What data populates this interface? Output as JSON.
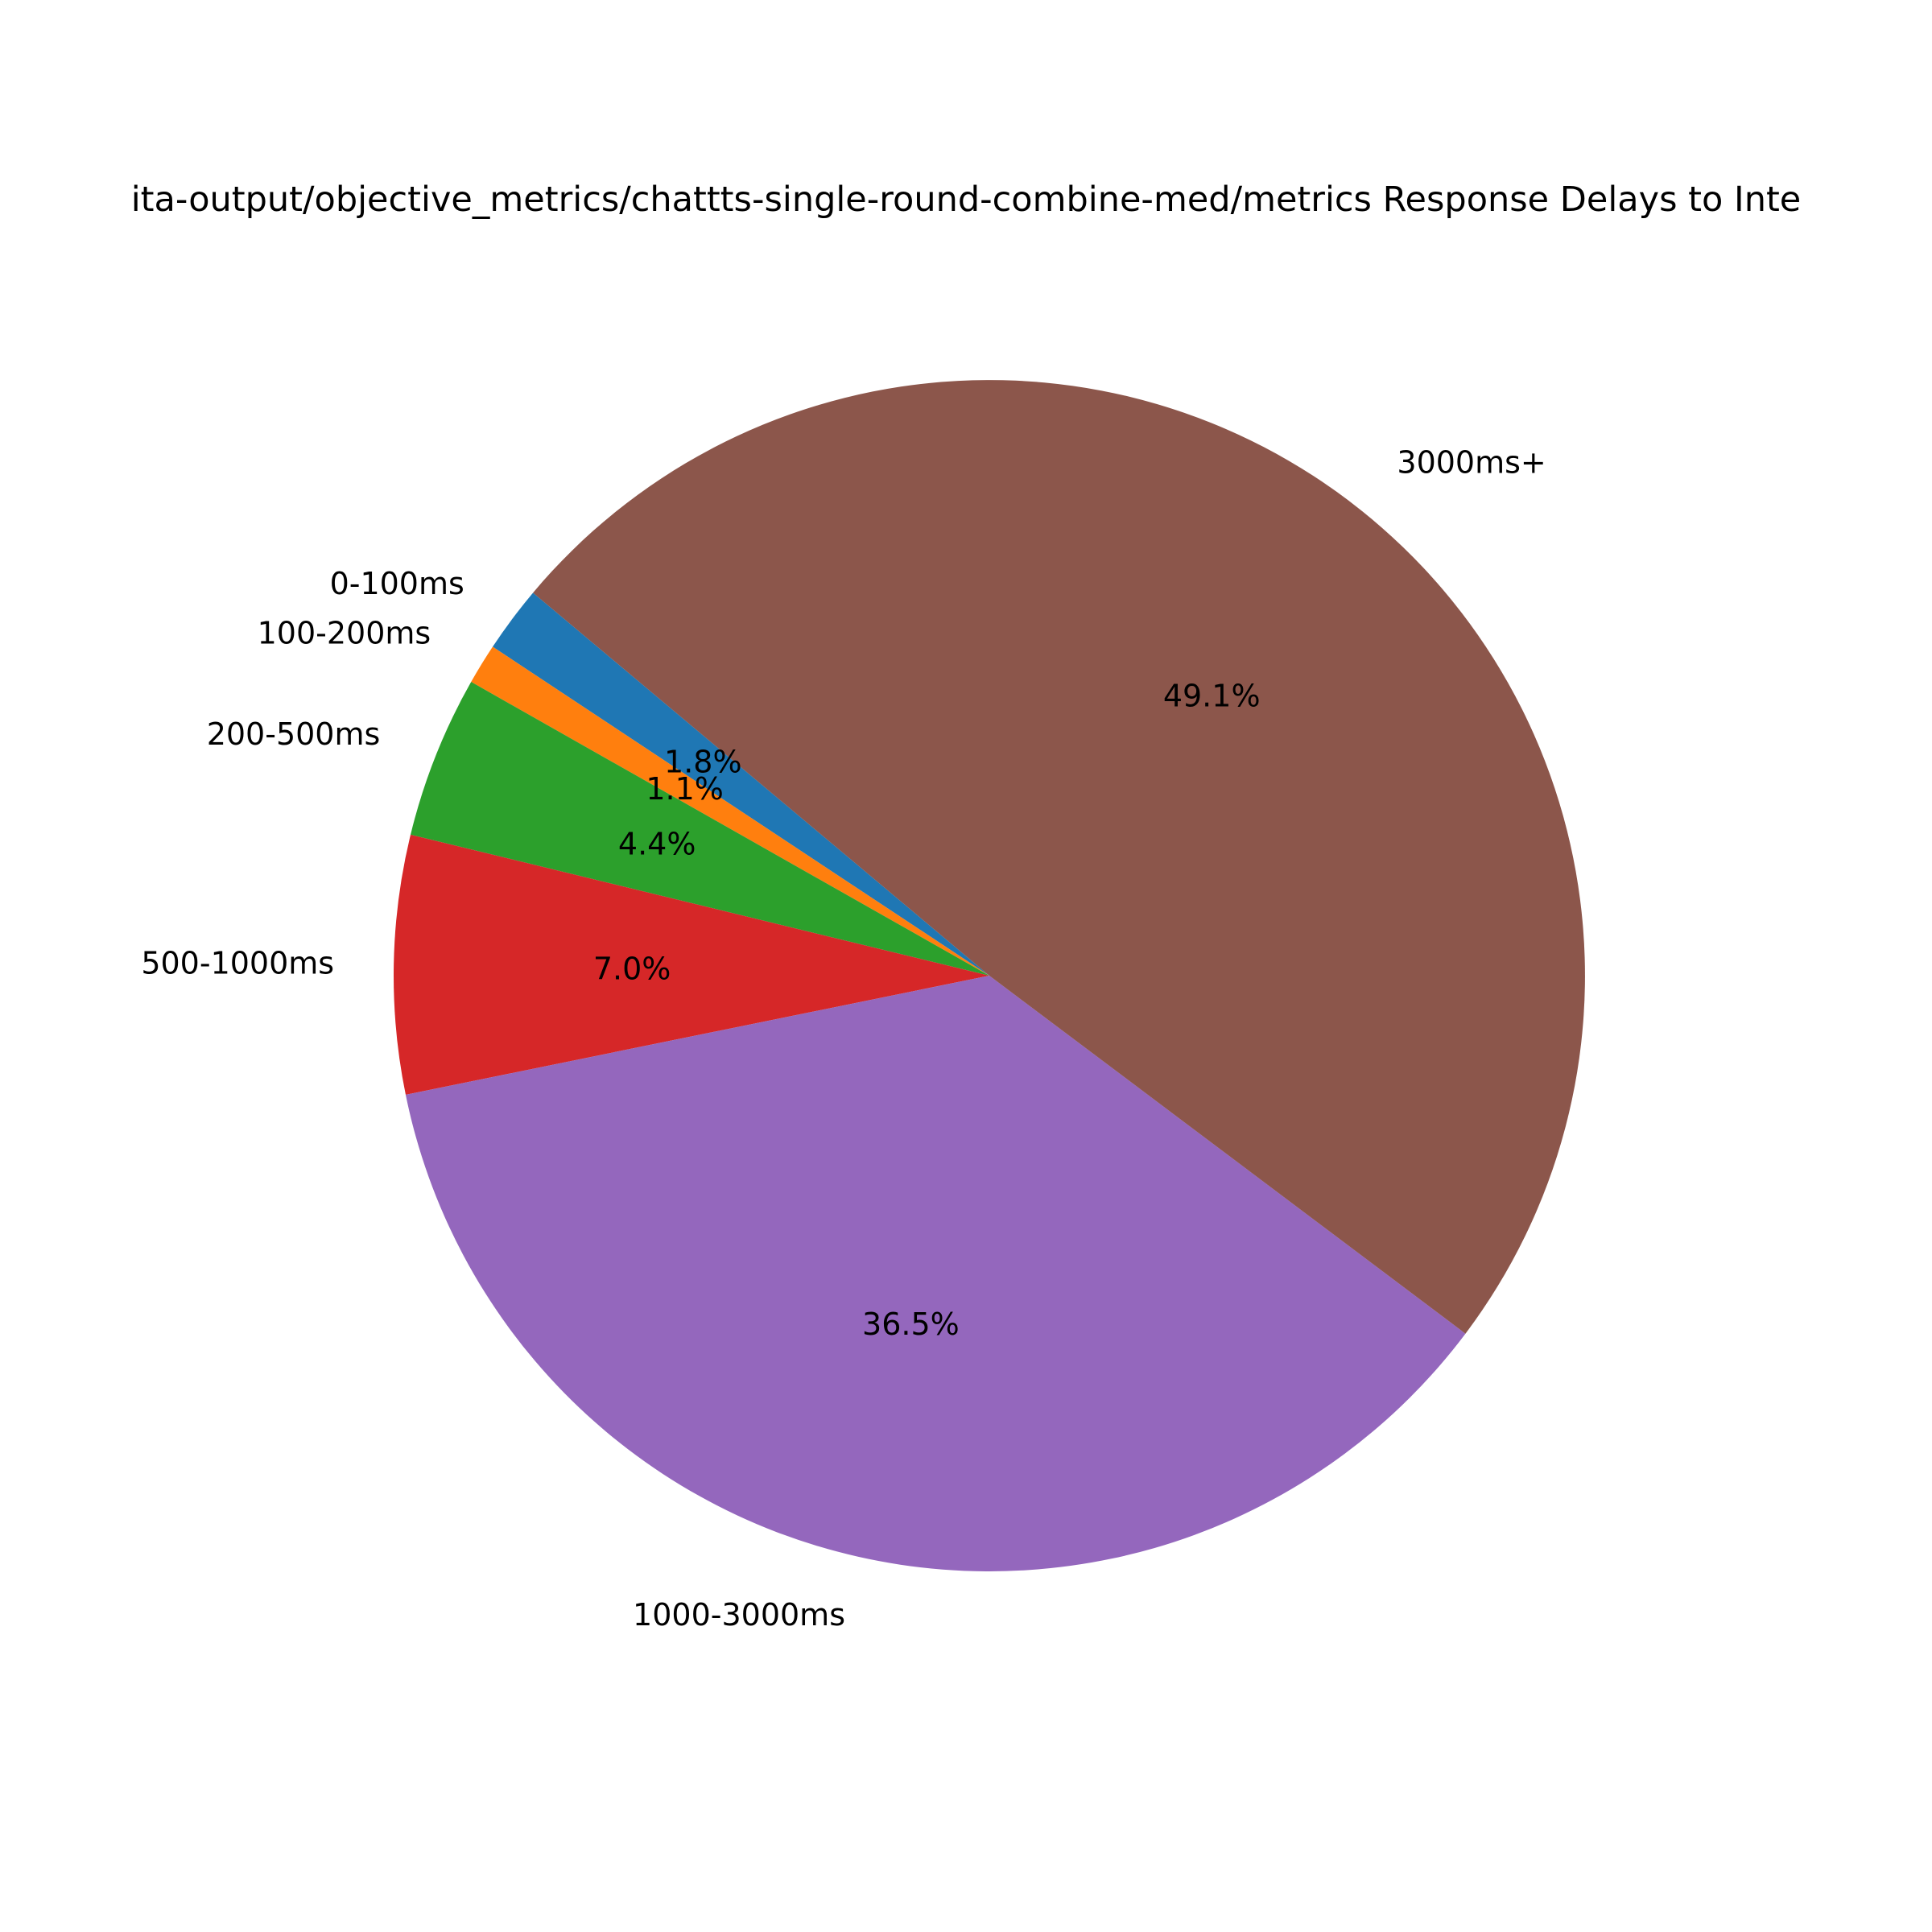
{
  "chart_data": {
    "type": "pie",
    "title": "data-output/objective_metrics/chattts-single-round-combine-med/metrics Response Delays to Interruptions",
    "title_visible": "ita-output/objective_metrics/chattts-single-round-combine-med/metrics Response Delays to Inte",
    "start_angle_deg": 140,
    "direction": "counterclockwise",
    "slices": [
      {
        "label": "0-100ms",
        "value": 1.8,
        "pct_label": "1.8%",
        "color": "#1f77b4"
      },
      {
        "label": "100-200ms",
        "value": 1.1,
        "pct_label": "1.1%",
        "color": "#ff7f0e"
      },
      {
        "label": "200-500ms",
        "value": 4.4,
        "pct_label": "4.4%",
        "color": "#2ca02c"
      },
      {
        "label": "500-1000ms",
        "value": 7.0,
        "pct_label": "7.0%",
        "color": "#d62728"
      },
      {
        "label": "1000-3000ms",
        "value": 36.5,
        "pct_label": "36.5%",
        "color": "#9467bd"
      },
      {
        "label": "3000ms+",
        "value": 49.1,
        "pct_label": "49.1%",
        "color": "#8c564b"
      }
    ]
  }
}
